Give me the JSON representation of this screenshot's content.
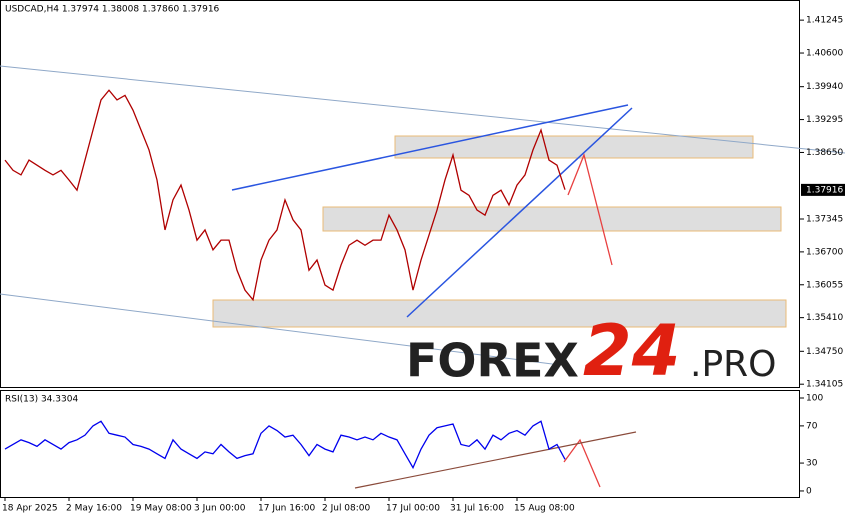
{
  "chart_data": [
    {
      "type": "line",
      "title": "USDCAD,H4  1.37974 1.38008 1.37860 1.37916",
      "color": "#b00000",
      "values": [
        1.385,
        1.383,
        1.3821,
        1.385,
        1.384,
        1.383,
        1.3821,
        1.383,
        1.3811,
        1.3791,
        1.385,
        1.3909,
        1.3968,
        1.3987,
        1.3968,
        1.3977,
        1.3948,
        1.3909,
        1.387,
        1.3811,
        1.3713,
        1.3772,
        1.3801,
        1.3752,
        1.3693,
        1.3713,
        1.3674,
        1.3693,
        1.3693,
        1.3634,
        1.3595,
        1.3576,
        1.3654,
        1.3693,
        1.3713,
        1.3772,
        1.3733,
        1.3713,
        1.3634,
        1.3654,
        1.3605,
        1.3595,
        1.3644,
        1.3683,
        1.3693,
        1.3683,
        1.3693,
        1.3693,
        1.3742,
        1.3713,
        1.3674,
        1.3595,
        1.3654,
        1.3703,
        1.3752,
        1.3811,
        1.386,
        1.3791,
        1.3781,
        1.3752,
        1.3742,
        1.3781,
        1.3791,
        1.3762,
        1.3801,
        1.3821,
        1.387,
        1.3909,
        1.385,
        1.384,
        1.3792
      ],
      "ylim": [
        1.3405,
        1.4164
      ],
      "yticks": [
        1.41245,
        {
          "value": 1.406,
          "label": "1.40600"
        },
        {
          "value": 1.3994,
          "label": "1.39940"
        },
        1.39295,
        {
          "value": 1.3865,
          "label": "1.38650"
        },
        1.37345,
        {
          "value": 1.367,
          "label": "1.36700"
        },
        1.36055,
        {
          "value": 1.3541,
          "label": "1.35410"
        },
        {
          "value": 1.3475,
          "label": "1.34750"
        },
        1.34105
      ],
      "current_price": 1.37916,
      "logo": [
        "FOREX",
        "24",
        ".PRO"
      ]
    },
    {
      "type": "line",
      "title": "RSI(13) 34.3304",
      "color": "#0000ee",
      "categories": [
        "18 Apr 2025",
        null,
        null,
        null,
        null,
        null,
        null,
        null,
        "2 May 16:00",
        null,
        null,
        null,
        null,
        null,
        null,
        null,
        "19 May 08:00",
        null,
        null,
        null,
        null,
        null,
        null,
        null,
        "3 Jun 00:00",
        null,
        null,
        null,
        null,
        null,
        null,
        null,
        "17 Jun 16:00",
        null,
        null,
        null,
        null,
        null,
        null,
        null,
        "2 Jul 08:00",
        null,
        null,
        null,
        null,
        null,
        null,
        null,
        "17 Jul 00:00",
        null,
        null,
        null,
        null,
        null,
        null,
        null,
        "31 Jul 16:00",
        null,
        null,
        null,
        null,
        null,
        null,
        null,
        "15 Aug 08:00",
        null,
        null,
        null,
        null,
        null,
        null
      ],
      "values": [
        45,
        50,
        55,
        52,
        48,
        55,
        50,
        45,
        52,
        55,
        60,
        70,
        75,
        62,
        60,
        58,
        50,
        48,
        45,
        40,
        35,
        55,
        45,
        40,
        35,
        42,
        40,
        50,
        42,
        35,
        38,
        40,
        62,
        70,
        65,
        58,
        60,
        50,
        38,
        50,
        45,
        42,
        60,
        58,
        55,
        58,
        55,
        62,
        58,
        55,
        40,
        25,
        45,
        60,
        68,
        70,
        72,
        50,
        48,
        55,
        45,
        60,
        55,
        62,
        65,
        60,
        70,
        75,
        45,
        50,
        34
      ],
      "ylim": [
        -6.5,
        108.6
      ],
      "yticks": [
        0,
        30,
        70,
        100
      ]
    }
  ]
}
